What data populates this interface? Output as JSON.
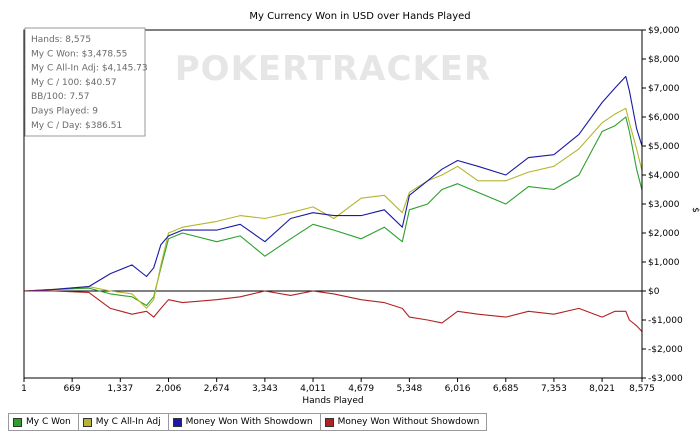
{
  "chart_data": {
    "type": "line",
    "title": "My Currency Won in USD over Hands Played",
    "xlabel": "Hands Played",
    "ylabel": "$",
    "watermark": "POKERTRACKER",
    "xlim": [
      1,
      8575
    ],
    "ylim": [
      -3000,
      9000
    ],
    "x_ticks": [
      1,
      669,
      1337,
      2006,
      2674,
      3343,
      4011,
      4679,
      5348,
      6016,
      6685,
      7353,
      8021,
      8575
    ],
    "x_tick_labels": [
      "1",
      "669",
      "1,337",
      "2,006",
      "2,674",
      "3,343",
      "4,011",
      "4,679",
      "5,348",
      "6,016",
      "6,685",
      "7,353",
      "8,021",
      "8,575"
    ],
    "y_ticks": [
      -3000,
      -2000,
      -1000,
      0,
      1000,
      2000,
      3000,
      4000,
      5000,
      6000,
      7000,
      8000,
      9000
    ],
    "y_tick_labels": [
      "-$3,000",
      "-$2,000",
      "-$1,000",
      "$0",
      "$1,000",
      "$2,000",
      "$3,000",
      "$4,000",
      "$5,000",
      "$6,000",
      "$7,000",
      "$8,000",
      "$9,000"
    ],
    "stats": [
      "Hands: 8,575",
      "My C Won: $3,478.55",
      "My C All-In Adj: $4,145.73",
      "My C / 100: $40.57",
      "BB/100: 7.57",
      "Days Played: 9",
      "My C / Day: $386.51"
    ],
    "series": [
      {
        "name": "My C Won",
        "color": "#2ca02c",
        "x": [
          1,
          400,
          900,
          1200,
          1500,
          1700,
          1800,
          1900,
          2006,
          2200,
          2674,
          3000,
          3343,
          3700,
          4011,
          4300,
          4679,
          5000,
          5250,
          5348,
          5600,
          5800,
          6016,
          6300,
          6685,
          7000,
          7353,
          7700,
          8021,
          8200,
          8350,
          8400,
          8500,
          8575
        ],
        "y": [
          0,
          50,
          100,
          -100,
          -200,
          -500,
          -200,
          800,
          1800,
          2000,
          1700,
          1900,
          1200,
          1800,
          2300,
          2100,
          1800,
          2200,
          1700,
          2800,
          3000,
          3500,
          3700,
          3400,
          3000,
          3600,
          3500,
          4000,
          5500,
          5700,
          6000,
          5500,
          4200,
          3479
        ]
      },
      {
        "name": "My C All-In Adj",
        "color": "#b5b530",
        "x": [
          1,
          400,
          900,
          1200,
          1500,
          1700,
          1800,
          1900,
          2006,
          2200,
          2674,
          3000,
          3343,
          3700,
          4011,
          4300,
          4679,
          5000,
          5250,
          5348,
          5600,
          5800,
          6016,
          6300,
          6685,
          7000,
          7353,
          7700,
          8021,
          8200,
          8350,
          8400,
          8500,
          8575
        ],
        "y": [
          0,
          60,
          150,
          0,
          -100,
          -600,
          -300,
          900,
          2000,
          2200,
          2400,
          2600,
          2500,
          2700,
          2900,
          2500,
          3200,
          3300,
          2700,
          3400,
          3800,
          4000,
          4300,
          3800,
          3800,
          4100,
          4300,
          4900,
          5800,
          6100,
          6300,
          5800,
          4900,
          4146
        ]
      },
      {
        "name": "Money Won With Showdown",
        "color": "#1a1aa6",
        "x": [
          1,
          400,
          900,
          1200,
          1500,
          1700,
          1800,
          1900,
          2006,
          2200,
          2674,
          3000,
          3343,
          3700,
          4011,
          4300,
          4679,
          5000,
          5250,
          5348,
          5600,
          5800,
          6016,
          6300,
          6685,
          7000,
          7353,
          7700,
          8021,
          8200,
          8350,
          8400,
          8500,
          8575
        ],
        "y": [
          0,
          50,
          150,
          600,
          900,
          500,
          800,
          1600,
          1900,
          2100,
          2100,
          2300,
          1700,
          2500,
          2700,
          2600,
          2600,
          2800,
          2200,
          3300,
          3800,
          4200,
          4500,
          4300,
          4000,
          4600,
          4700,
          5400,
          6500,
          7000,
          7400,
          6900,
          5600,
          5000
        ]
      },
      {
        "name": "Money Won Without Showdown",
        "color": "#b22222",
        "x": [
          1,
          400,
          900,
          1200,
          1500,
          1700,
          1800,
          1900,
          2006,
          2200,
          2674,
          3000,
          3343,
          3700,
          4011,
          4300,
          4679,
          5000,
          5250,
          5348,
          5600,
          5800,
          6016,
          6300,
          6685,
          7000,
          7353,
          7700,
          8021,
          8200,
          8350,
          8400,
          8500,
          8575
        ],
        "y": [
          0,
          0,
          -50,
          -600,
          -800,
          -700,
          -900,
          -600,
          -300,
          -400,
          -300,
          -200,
          0,
          -150,
          0,
          -100,
          -300,
          -400,
          -600,
          -900,
          -1000,
          -1100,
          -700,
          -800,
          -900,
          -700,
          -800,
          -600,
          -900,
          -700,
          -700,
          -1000,
          -1200,
          -1400
        ]
      }
    ]
  }
}
